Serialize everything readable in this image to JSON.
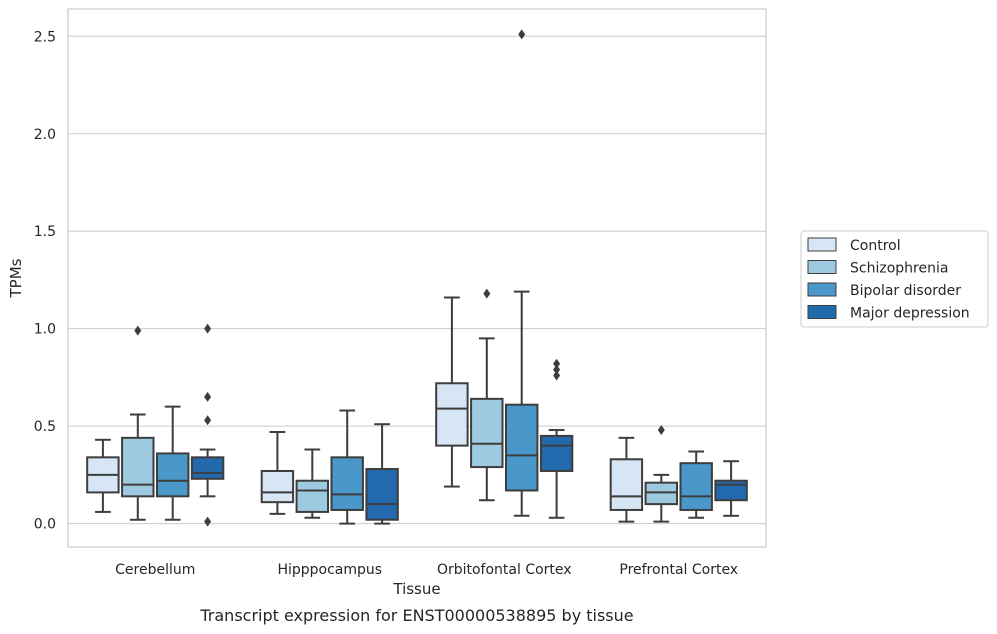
{
  "chart_data": {
    "type": "box",
    "caption": "Transcript expression for ENST00000538895 by tissue",
    "xlabel": "Tissue",
    "ylabel": "TPMs",
    "ylim": [
      -0.12,
      2.64
    ],
    "yticks": [
      0.0,
      0.5,
      1.0,
      1.5,
      2.0,
      2.5
    ],
    "ytick_labels": [
      "0.0",
      "0.5",
      "1.0",
      "1.5",
      "2.0",
      "2.5"
    ],
    "grid": "horizontal",
    "legend_position": "right",
    "categories": [
      "Cerebellum",
      "Hipppocampus",
      "Orbitofontal Cortex",
      "Prefrontal Cortex"
    ],
    "series": [
      {
        "name": "Control",
        "color": "#d6e6f4",
        "boxes": [
          {
            "whislo": 0.06,
            "q1": 0.16,
            "med": 0.25,
            "q3": 0.34,
            "whishi": 0.43,
            "fliers": []
          },
          {
            "whislo": 0.05,
            "q1": 0.11,
            "med": 0.16,
            "q3": 0.27,
            "whishi": 0.47,
            "fliers": []
          },
          {
            "whislo": 0.19,
            "q1": 0.4,
            "med": 0.59,
            "q3": 0.72,
            "whishi": 1.16,
            "fliers": []
          },
          {
            "whislo": 0.01,
            "q1": 0.07,
            "med": 0.14,
            "q3": 0.33,
            "whishi": 0.44,
            "fliers": []
          }
        ]
      },
      {
        "name": "Schizophrenia",
        "color": "#9ecae1",
        "boxes": [
          {
            "whislo": 0.02,
            "q1": 0.14,
            "med": 0.2,
            "q3": 0.44,
            "whishi": 0.56,
            "fliers": [
              0.99
            ]
          },
          {
            "whislo": 0.03,
            "q1": 0.06,
            "med": 0.17,
            "q3": 0.22,
            "whishi": 0.38,
            "fliers": []
          },
          {
            "whislo": 0.12,
            "q1": 0.29,
            "med": 0.41,
            "q3": 0.64,
            "whishi": 0.95,
            "fliers": [
              1.18
            ]
          },
          {
            "whislo": 0.01,
            "q1": 0.1,
            "med": 0.16,
            "q3": 0.21,
            "whishi": 0.25,
            "fliers": [
              0.48
            ]
          }
        ]
      },
      {
        "name": "Bipolar disorder",
        "color": "#4a98c9",
        "boxes": [
          {
            "whislo": 0.02,
            "q1": 0.14,
            "med": 0.22,
            "q3": 0.36,
            "whishi": 0.6,
            "fliers": []
          },
          {
            "whislo": 0.0,
            "q1": 0.07,
            "med": 0.15,
            "q3": 0.34,
            "whishi": 0.58,
            "fliers": []
          },
          {
            "whislo": 0.04,
            "q1": 0.17,
            "med": 0.35,
            "q3": 0.61,
            "whishi": 1.19,
            "fliers": [
              2.51
            ]
          },
          {
            "whislo": 0.03,
            "q1": 0.07,
            "med": 0.14,
            "q3": 0.31,
            "whishi": 0.37,
            "fliers": []
          }
        ]
      },
      {
        "name": "Major depression",
        "color": "#2369ad",
        "boxes": [
          {
            "whislo": 0.14,
            "q1": 0.23,
            "med": 0.26,
            "q3": 0.34,
            "whishi": 0.38,
            "fliers": [
              1.0,
              0.65,
              0.53,
              0.01
            ]
          },
          {
            "whislo": 0.0,
            "q1": 0.02,
            "med": 0.1,
            "q3": 0.28,
            "whishi": 0.51,
            "fliers": []
          },
          {
            "whislo": 0.03,
            "q1": 0.27,
            "med": 0.4,
            "q3": 0.45,
            "whishi": 0.48,
            "fliers": [
              0.82,
              0.79,
              0.76
            ]
          },
          {
            "whislo": 0.04,
            "q1": 0.12,
            "med": 0.2,
            "q3": 0.22,
            "whishi": 0.32,
            "fliers": []
          }
        ]
      }
    ]
  }
}
